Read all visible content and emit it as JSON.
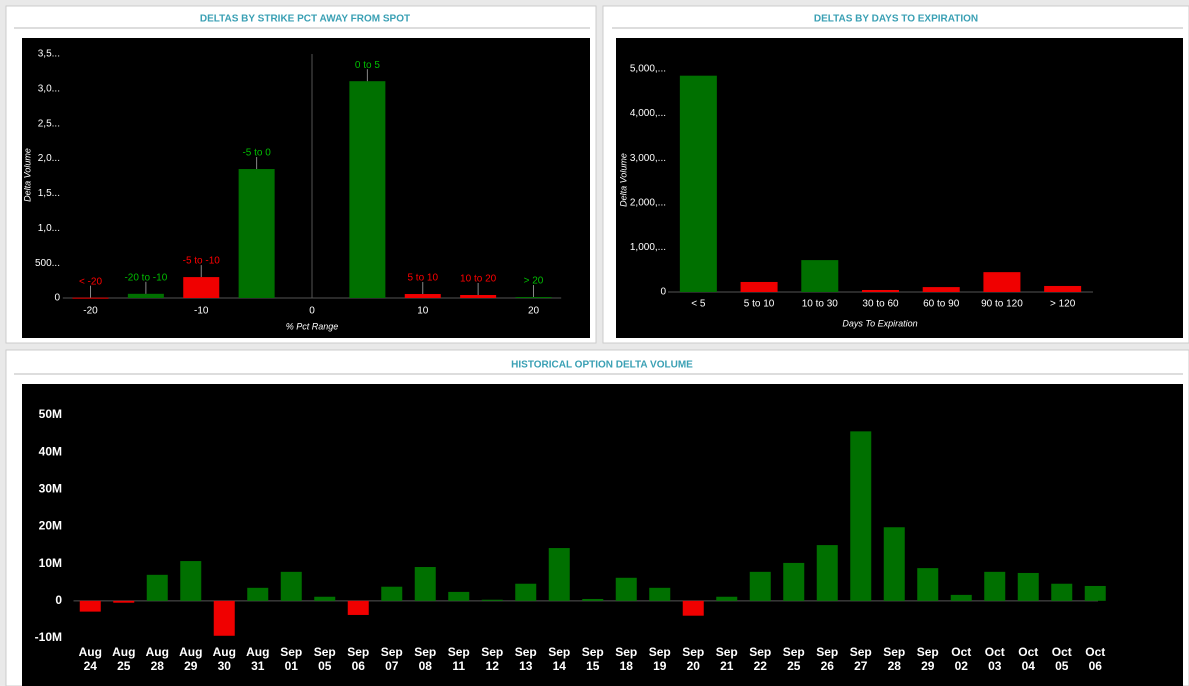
{
  "chart_data": [
    {
      "type": "bar",
      "title": "DELTAS BY STRIKE PCT AWAY FROM SPOT",
      "xlabel": "% Pct Range",
      "ylabel": "Delta Volume",
      "x": [
        -20,
        -15,
        -10,
        -5,
        5,
        10,
        15,
        20
      ],
      "labels": [
        "< -20",
        "-20 to -10",
        "-5 to -10",
        "-5 to 0",
        "0 to 5",
        "5 to 10",
        "10 to 20",
        "> 20"
      ],
      "values": [
        5,
        60,
        300,
        1850,
        3110,
        57,
        43,
        14
      ],
      "colors": [
        "#f00000",
        "#007000",
        "#f00000",
        "#007000",
        "#007000",
        "#f00000",
        "#f00000",
        "#007000"
      ],
      "xlim": [
        -22.5,
        22.5
      ],
      "xticks": [
        -20,
        -10,
        0,
        10,
        20
      ],
      "ylim": [
        0,
        3500
      ],
      "yticks": [
        0,
        {
          "value": 500,
          "label": "500..."
        },
        {
          "value": 1000,
          "label": "1,0..."
        },
        {
          "value": 1500,
          "label": "1,5..."
        },
        {
          "value": 2000,
          "label": "2,0..."
        },
        {
          "value": 2500,
          "label": "2,5..."
        },
        {
          "value": 3000,
          "label": "3,0..."
        },
        {
          "value": 3500,
          "label": "3,5..."
        }
      ]
    },
    {
      "type": "bar",
      "title": "DELTAS BY DAYS TO EXPIRATION",
      "xlabel": "Days To Expiration",
      "ylabel": "Delta Volume",
      "categories": [
        "< 5",
        "5 to 10",
        "10 to 30",
        "30 to 60",
        "60 to 90",
        "90 to 120",
        "> 120"
      ],
      "values": [
        4850,
        225,
        715,
        45,
        110,
        445,
        135
      ],
      "colors": [
        "#007000",
        "#f00000",
        "#007000",
        "#f00000",
        "#f00000",
        "#f00000",
        "#f00000"
      ],
      "ylim": [
        0,
        5000
      ],
      "yticks": [
        0,
        {
          "value": 1000,
          "label": "1,000,..."
        },
        {
          "value": 2000,
          "label": "2,000,..."
        },
        {
          "value": 3000,
          "label": "3,000,..."
        },
        {
          "value": 4000,
          "label": "4,000,..."
        },
        {
          "value": 5000,
          "label": "5,000,..."
        }
      ]
    },
    {
      "type": "bar",
      "title": "HISTORICAL OPTION DELTA VOLUME",
      "categories": [
        "Aug 24",
        "Aug 25",
        "Aug 28",
        "Aug 29",
        "Aug 30",
        "Aug 31",
        "Sep 01",
        "Sep 05",
        "Sep 06",
        "Sep 07",
        "Sep 08",
        "Sep 11",
        "Sep 12",
        "Sep 13",
        "Sep 14",
        "Sep 15",
        "Sep 18",
        "Sep 19",
        "Sep 20",
        "Sep 21",
        "Sep 22",
        "Sep 25",
        "Sep 26",
        "Sep 27",
        "Sep 28",
        "Sep 29",
        "Oct 02",
        "Oct 03",
        "Oct 04",
        "Oct 05",
        "Oct 06"
      ],
      "values": [
        -2900000,
        -500000,
        7000000,
        10700000,
        -9400000,
        3500000,
        7800000,
        1100000,
        -3800000,
        3800000,
        9100000,
        2400000,
        300000,
        4600000,
        14200000,
        500000,
        6200000,
        3500000,
        -4000000,
        1100000,
        7800000,
        10200000,
        15000000,
        45600000,
        19800000,
        8800000,
        1600000,
        7800000,
        7500000,
        4600000,
        4000000
      ],
      "positive_color": "#007000",
      "negative_color": "#f00000",
      "ylim": [
        -10000000,
        50000000
      ],
      "yticks": [
        {
          "value": -10000000,
          "label": "-10M"
        },
        0,
        {
          "value": 10000000,
          "label": "10M"
        },
        {
          "value": 20000000,
          "label": "20M"
        },
        {
          "value": 30000000,
          "label": "30M"
        },
        {
          "value": 40000000,
          "label": "40M"
        },
        {
          "value": 50000000,
          "label": "50M"
        }
      ]
    }
  ]
}
